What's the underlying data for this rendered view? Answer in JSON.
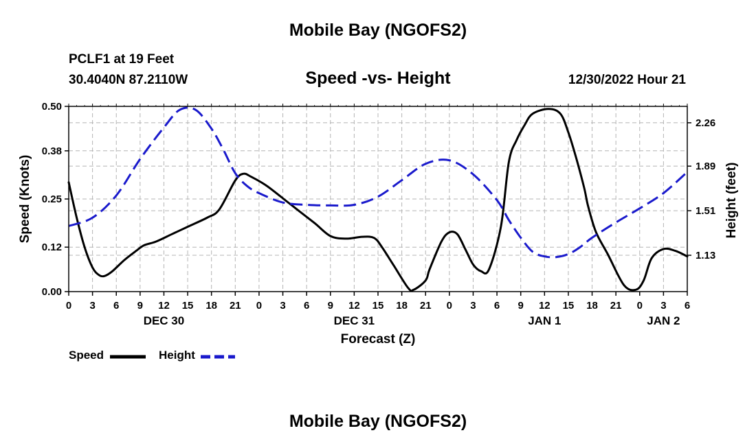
{
  "page": {
    "title": "Mobile Bay (NGOFS2)",
    "footer_title": "Mobile Bay (NGOFS2)",
    "station_line": "PCLF1 at 19 Feet",
    "coords_line": "30.4040N  87.2110W",
    "timestamp": "12/30/2022 Hour 21"
  },
  "chart_data": {
    "type": "line",
    "title": "Speed -vs- Height",
    "xlabel": "Forecast (Z)",
    "ylabel": "Speed (Knots)",
    "y2label": "Height (feet)",
    "ylim": [
      0,
      0.5
    ],
    "y2lim": [
      0.82,
      2.4
    ],
    "yticks": [
      0.0,
      0.12,
      0.25,
      0.38,
      0.5
    ],
    "ytick_labels": [
      "0.00",
      "0.12",
      "0.25",
      "0.38",
      "0.50"
    ],
    "y2ticks": [
      1.13,
      1.51,
      1.89,
      2.26
    ],
    "y2tick_labels": [
      "1.13",
      "1.51",
      "1.89",
      "2.26"
    ],
    "xlim": [
      0,
      78
    ],
    "x_ticks": [
      0,
      3,
      6,
      9,
      12,
      15,
      18,
      21,
      24,
      27,
      30,
      33,
      36,
      39,
      42,
      45,
      48,
      51,
      54,
      57,
      60,
      63,
      66,
      69,
      72,
      75,
      78
    ],
    "x_tick_labels": [
      "0",
      "3",
      "6",
      "9",
      "12",
      "15",
      "18",
      "21",
      "0",
      "3",
      "6",
      "9",
      "12",
      "15",
      "18",
      "21",
      "0",
      "3",
      "6",
      "9",
      "12",
      "15",
      "18",
      "21",
      "0",
      "3",
      "6"
    ],
    "day_labels": [
      {
        "x": 12,
        "label": "DEC 30"
      },
      {
        "x": 36,
        "label": "DEC 31"
      },
      {
        "x": 60,
        "label": "JAN 1"
      },
      {
        "x": 75,
        "label": "JAN 2"
      }
    ],
    "grid": true,
    "legend_position": "bottom-left",
    "series": [
      {
        "name": "Speed",
        "axis": "left",
        "color": "#000000",
        "style": "solid",
        "x": [
          0,
          1,
          2,
          3,
          3.8,
          4.5,
          5.5,
          7,
          8.5,
          9.5,
          11,
          13,
          15,
          17.5,
          19,
          21,
          22,
          23,
          25,
          28,
          31,
          33,
          35,
          37,
          38.5,
          39.5,
          41,
          42.8,
          43.5,
          45,
          45.5,
          47,
          48,
          49,
          50,
          51,
          52,
          53,
          54.5,
          55.5,
          56.5,
          57.5,
          58.5,
          60.5,
          62,
          63,
          64,
          65,
          65.5,
          66.5,
          68,
          70,
          71.5,
          72.5,
          73.5,
          75,
          76.5,
          78
        ],
        "values": [
          0.295,
          0.2,
          0.12,
          0.065,
          0.045,
          0.042,
          0.055,
          0.085,
          0.11,
          0.125,
          0.135,
          0.155,
          0.175,
          0.2,
          0.222,
          0.3,
          0.318,
          0.31,
          0.285,
          0.235,
          0.185,
          0.15,
          0.143,
          0.148,
          0.145,
          0.12,
          0.07,
          0.01,
          0.005,
          0.03,
          0.06,
          0.135,
          0.16,
          0.155,
          0.115,
          0.073,
          0.055,
          0.06,
          0.175,
          0.35,
          0.41,
          0.45,
          0.48,
          0.493,
          0.48,
          0.43,
          0.36,
          0.28,
          0.23,
          0.16,
          0.1,
          0.018,
          0.005,
          0.03,
          0.09,
          0.115,
          0.11,
          0.095
        ]
      },
      {
        "name": "Height",
        "axis": "right",
        "color": "#1a1acc",
        "style": "dashed",
        "x": [
          0,
          3,
          6,
          9,
          12,
          14,
          16,
          18,
          19.5,
          21,
          22.5,
          24,
          27,
          30,
          33,
          36,
          39,
          42,
          45,
          48,
          51,
          54,
          55.5,
          57,
          58.5,
          60,
          61.5,
          63,
          64.5,
          66,
          69,
          72,
          75,
          78
        ],
        "values": [
          1.38,
          1.45,
          1.64,
          1.95,
          2.22,
          2.37,
          2.37,
          2.21,
          2.03,
          1.83,
          1.72,
          1.66,
          1.58,
          1.56,
          1.555,
          1.56,
          1.63,
          1.77,
          1.91,
          1.94,
          1.82,
          1.6,
          1.43,
          1.28,
          1.16,
          1.12,
          1.115,
          1.14,
          1.2,
          1.28,
          1.41,
          1.53,
          1.66,
          1.84
        ]
      }
    ]
  }
}
